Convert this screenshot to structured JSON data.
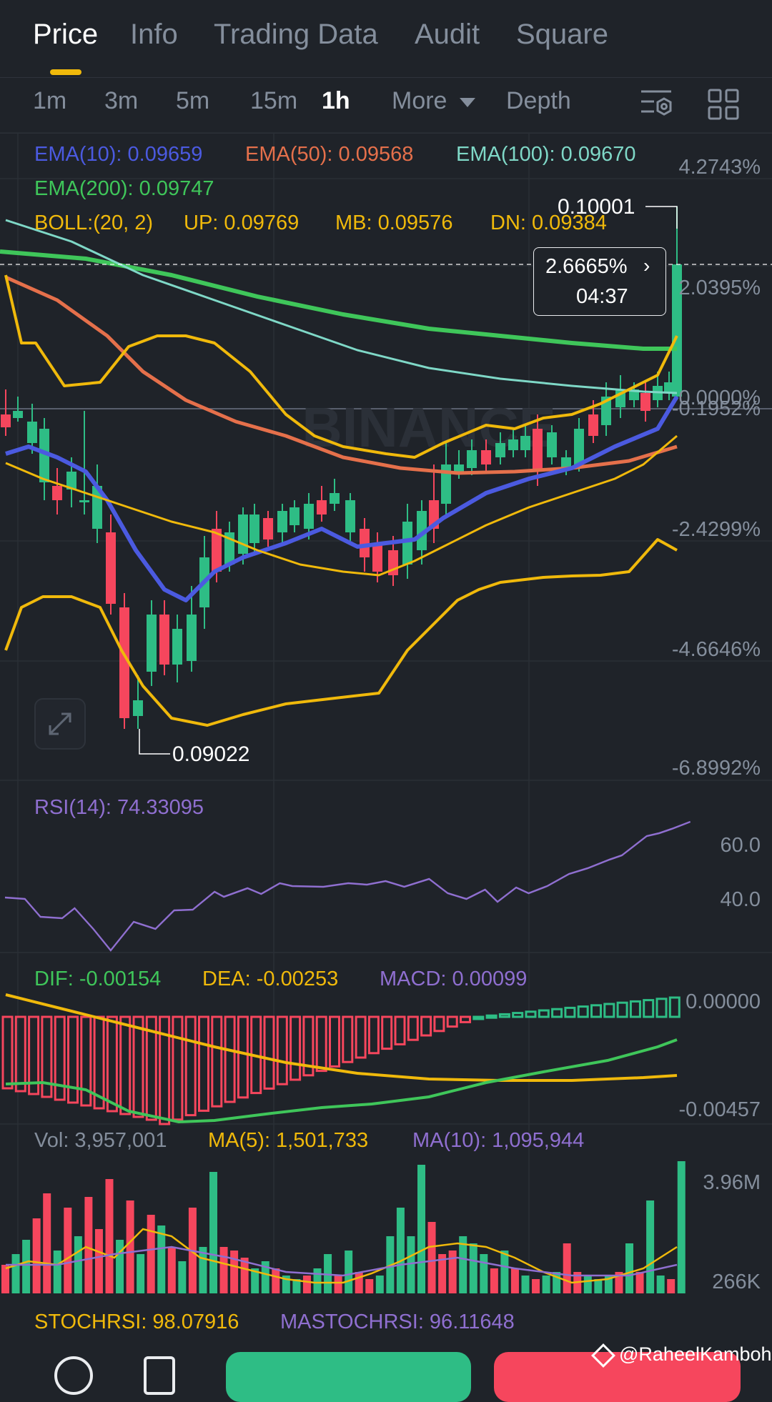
{
  "tabs": [
    {
      "label": "Price",
      "active": true
    },
    {
      "label": "Info",
      "active": false
    },
    {
      "label": "Trading Data",
      "active": false
    },
    {
      "label": "Audit",
      "active": false
    },
    {
      "label": "Square",
      "active": false
    }
  ],
  "intervals": [
    {
      "label": "1m",
      "active": false
    },
    {
      "label": "3m",
      "active": false
    },
    {
      "label": "5m",
      "active": false
    },
    {
      "label": "15m",
      "active": false
    },
    {
      "label": "1h",
      "active": true
    }
  ],
  "more_label": "More",
  "depth_label": "Depth",
  "toolbar_icons": [
    "indicator-settings-icon",
    "layout-grid-icon"
  ],
  "indicators": {
    "ema10": "EMA(10): 0.09659",
    "ema50": "EMA(50): 0.09568",
    "ema100": "EMA(100): 0.09670",
    "ema200": "EMA(200): 0.09747",
    "boll_title": "BOLL:(20, 2)",
    "boll_up": "UP: 0.09769",
    "boll_mb": "MB: 0.09576",
    "boll_dn": "DN: 0.09384"
  },
  "price_axis": [
    "4.2743%",
    "2.0395%",
    "0.0000%",
    "-0.1952%",
    "-2.4299%",
    "-4.6646%",
    "-6.8992%"
  ],
  "high_label": "0.10001",
  "low_label": "0.09022",
  "current_tag": {
    "change": "2.6665%",
    "countdown": "04:37"
  },
  "watermark": "BINANCE",
  "rsi": {
    "label": "RSI(14): 74.33095",
    "axis": [
      "60.0",
      "40.0"
    ]
  },
  "macd": {
    "dif": "DIF: -0.00154",
    "dea": "DEA: -0.00253",
    "macd": "MACD: 0.00099",
    "axis": [
      "0.00000",
      "-0.00457"
    ]
  },
  "volume": {
    "vol": "Vol: 3,957,001",
    "ma5": "MA(5): 1,501,733",
    "ma10": "MA(10): 1,095,944",
    "axis": [
      "3.96M",
      "266K"
    ]
  },
  "stochrsi": {
    "label": "STOCHRSI: 98.07916",
    "ma": "MASTOCHRSI: 96.11648"
  },
  "credit": "@RaheelKamboh",
  "colors": {
    "up": "#2ebd85",
    "down": "#f6465d",
    "ema10": "#4b5ae0",
    "ema50": "#e5704b",
    "ema100": "#7fd8c7",
    "ema200": "#3fc65a",
    "boll": "#f0b90b",
    "rsi": "#8f6fd0",
    "accent": "#f0b90b"
  }
}
